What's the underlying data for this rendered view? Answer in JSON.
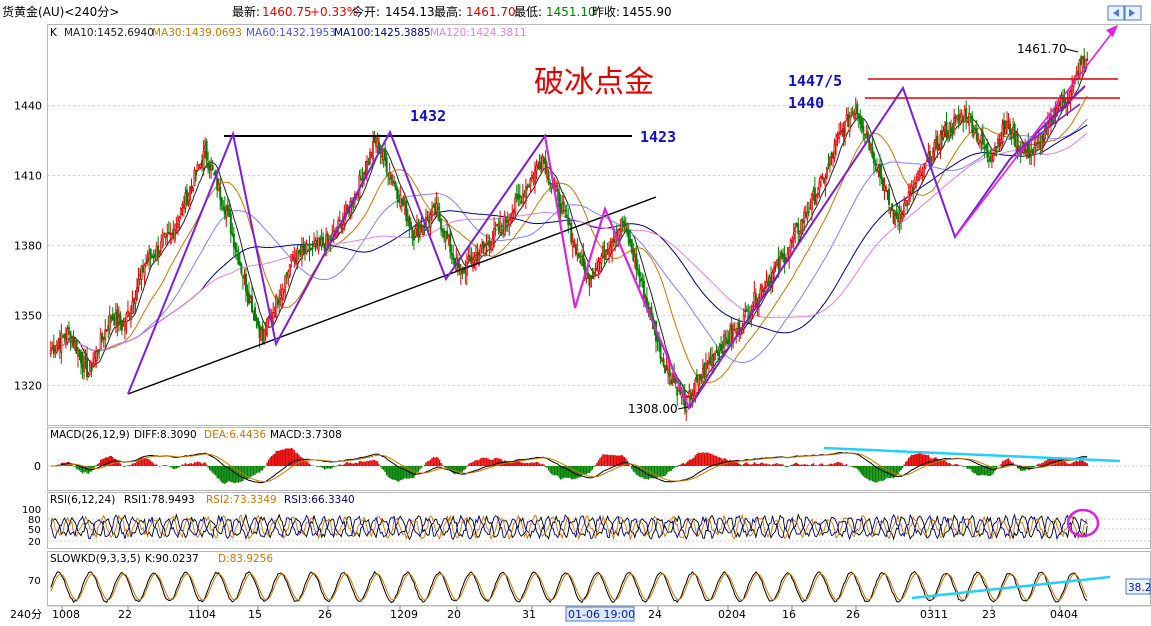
{
  "header": {
    "symbol": "货黄金(AU)<240分>",
    "latest_label": "最新:",
    "latest": "1460.75",
    "change": "+0.33%",
    "open_label": "今开:",
    "open": "1454.13",
    "high_label": "最高:",
    "high": "1461.70",
    "low_label": "最低:",
    "low": "1451.10",
    "prev_close_label": "昨收:",
    "prev_close": "1455.90"
  },
  "ma_legend": {
    "k": "K",
    "ma10": "MA10:1452.6940",
    "ma30": "MA30:1439.0693",
    "ma60": "MA60:1432.1953",
    "ma100": "MA100:1425.3885",
    "ma120": "MA120:1424.3811"
  },
  "annotations": {
    "title": "破冰点金",
    "resist1": "1432",
    "resist2": "1423",
    "lvl1": "1447/5",
    "lvl2": "1440",
    "high_mark": "1461.70",
    "low_mark": "1308.00"
  },
  "macd_legend": {
    "name": "MACD(26,12,9)",
    "diff": "DIFF:8.3090",
    "dea": "DEA:6.4436",
    "macd": "MACD:3.7308"
  },
  "rsi_legend": {
    "name": "RSI(6,12,24)",
    "rsi1": "RSI1:78.9493",
    "rsi2": "RSI2:73.3349",
    "rsi3": "RSI3:66.3340"
  },
  "kd_legend": {
    "name": "SLOWKD(9,3,3,5)",
    "k": "K:90.0237",
    "d": "D:83.9256"
  },
  "right_value": "38.2",
  "period_label": "240分",
  "cursor_date": "01-06 19:00",
  "colors": {
    "up": "#e00000",
    "down": "#008000",
    "ma10": "#202020",
    "ma30": "#c87800",
    "ma60": "#8080ff",
    "ma100": "#000080",
    "ma120": "#e080e0",
    "purple": "#7a1fd8",
    "magenta": "#e020e0",
    "label_blue": "#1010c0",
    "cyan": "#20d0ff"
  },
  "chart_data": [
    {
      "type": "candlestick",
      "title": "",
      "y_ticks": [
        1320,
        1350,
        1380,
        1410,
        1440
      ],
      "ylim": [
        1303,
        1475
      ],
      "x_ticks": [
        "1008",
        "22",
        "1104",
        "15",
        "26",
        "1209",
        "20",
        "31",
        "24",
        "0204",
        "16",
        "26",
        "0311",
        "23",
        "0404"
      ],
      "anchors": [
        [
          0,
          1335
        ],
        [
          12,
          1343
        ],
        [
          25,
          1325
        ],
        [
          40,
          1350
        ],
        [
          48,
          1345
        ],
        [
          62,
          1372
        ],
        [
          80,
          1385
        ],
        [
          102,
          1420
        ],
        [
          116,
          1395
        ],
        [
          128,
          1365
        ],
        [
          140,
          1340
        ],
        [
          160,
          1375
        ],
        [
          185,
          1382
        ],
        [
          200,
          1400
        ],
        [
          215,
          1425
        ],
        [
          225,
          1410
        ],
        [
          240,
          1385
        ],
        [
          255,
          1395
        ],
        [
          270,
          1368
        ],
        [
          285,
          1378
        ],
        [
          300,
          1390
        ],
        [
          310,
          1400
        ],
        [
          325,
          1418
        ],
        [
          340,
          1392
        ],
        [
          355,
          1365
        ],
        [
          368,
          1380
        ],
        [
          378,
          1390
        ],
        [
          390,
          1365
        ],
        [
          405,
          1330
        ],
        [
          420,
          1312
        ],
        [
          428,
          1322
        ],
        [
          440,
          1335
        ],
        [
          455,
          1345
        ],
        [
          470,
          1362
        ],
        [
          485,
          1375
        ],
        [
          500,
          1395
        ],
        [
          512,
          1410
        ],
        [
          520,
          1425
        ],
        [
          532,
          1440
        ],
        [
          546,
          1415
        ],
        [
          558,
          1390
        ],
        [
          575,
          1410
        ],
        [
          590,
          1428
        ],
        [
          605,
          1437
        ],
        [
          620,
          1418
        ],
        [
          632,
          1432
        ],
        [
          642,
          1420
        ],
        [
          650,
          1420
        ],
        [
          658,
          1428
        ],
        [
          665,
          1440
        ],
        [
          674,
          1445
        ],
        [
          680,
          1457
        ],
        [
          685,
          1460
        ]
      ],
      "ma_series": [
        "MA10",
        "MA30",
        "MA60",
        "MA100",
        "MA120"
      ]
    },
    {
      "type": "bar",
      "name": "MACD",
      "zero_tick": "0",
      "last": {
        "diff": 8.309,
        "dea": 6.4436,
        "macd": 3.7308
      }
    },
    {
      "type": "line",
      "name": "RSI",
      "y_ticks": [
        "100",
        "80",
        "50",
        "20"
      ],
      "last": [
        78.9493,
        73.3349,
        66.334
      ]
    },
    {
      "type": "line",
      "name": "SLOWKD",
      "y_ticks": [
        "70"
      ],
      "last": {
        "k": 90.0237,
        "d": 83.9256
      }
    }
  ]
}
